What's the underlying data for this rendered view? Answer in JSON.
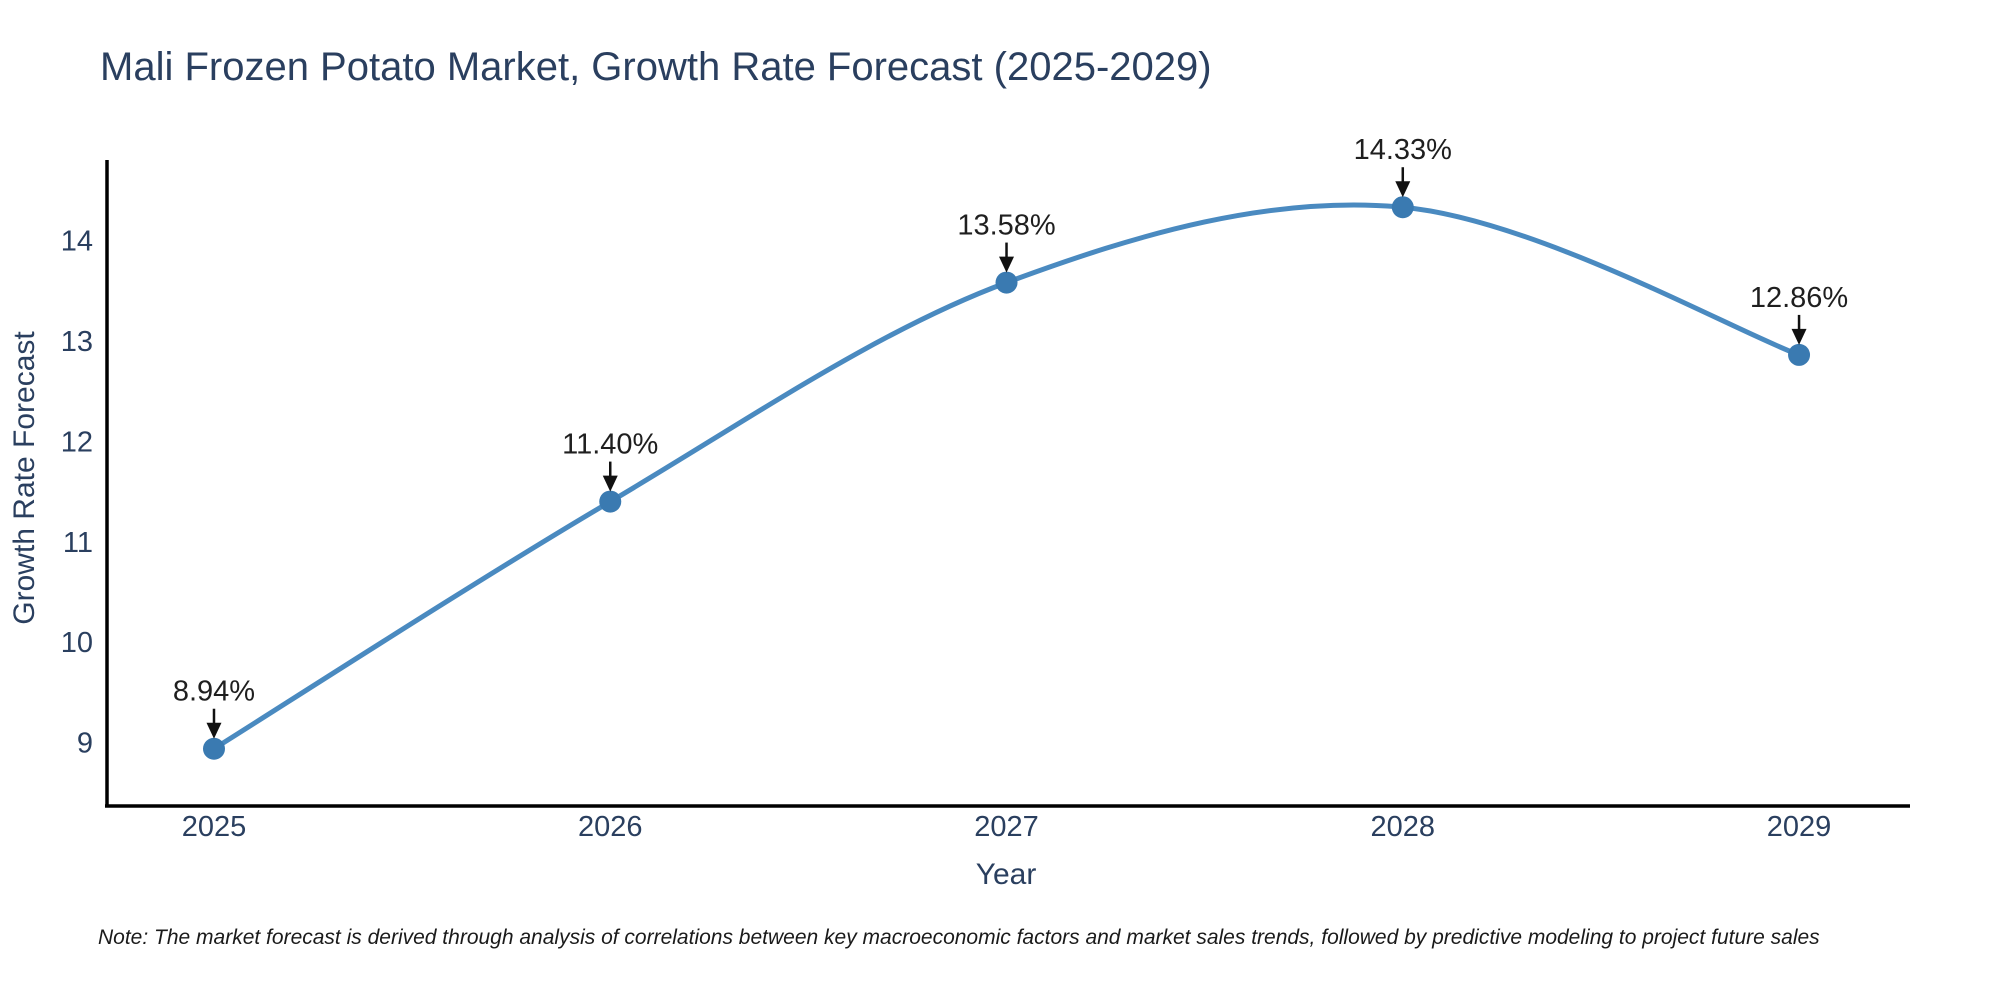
{
  "title": "Mali Frozen Potato Market, Growth Rate Forecast (2025-2029)",
  "note": "Note: The market forecast is derived through analysis of correlations between key macroeconomic factors and market sales trends, followed by predictive modeling to project future sales",
  "chart_data": {
    "type": "line",
    "title": "Mali Frozen Potato Market, Growth Rate Forecast (2025-2029)",
    "xlabel": "Year",
    "ylabel": "Growth Rate Forecast",
    "x": [
      2025,
      2026,
      2027,
      2028,
      2029
    ],
    "series": [
      {
        "name": "Growth Rate Forecast",
        "values": [
          8.94,
          11.4,
          13.58,
          14.33,
          12.86
        ]
      }
    ],
    "point_labels": [
      "8.94%",
      "11.40%",
      "13.58%",
      "14.33%",
      "12.86%"
    ],
    "xtick_labels": [
      "2025",
      "2026",
      "2027",
      "2028",
      "2029"
    ],
    "xticks": [
      2025,
      2026,
      2027,
      2028,
      2029
    ],
    "yticks": [
      9,
      10,
      11,
      12,
      13,
      14
    ],
    "xlim": [
      2024.73,
      2029.28
    ],
    "ylim": [
      8.37,
      14.8
    ],
    "line_shape": "spline",
    "grid": false,
    "legend": false,
    "annotation_arrows": "down-to-point",
    "colors": {
      "line": "#4a8ac0",
      "marker": "#3a7ab1",
      "axis": "#000000",
      "text": "#2a3f5f",
      "annotation": "#1f1f1f",
      "background": "#ffffff"
    }
  }
}
